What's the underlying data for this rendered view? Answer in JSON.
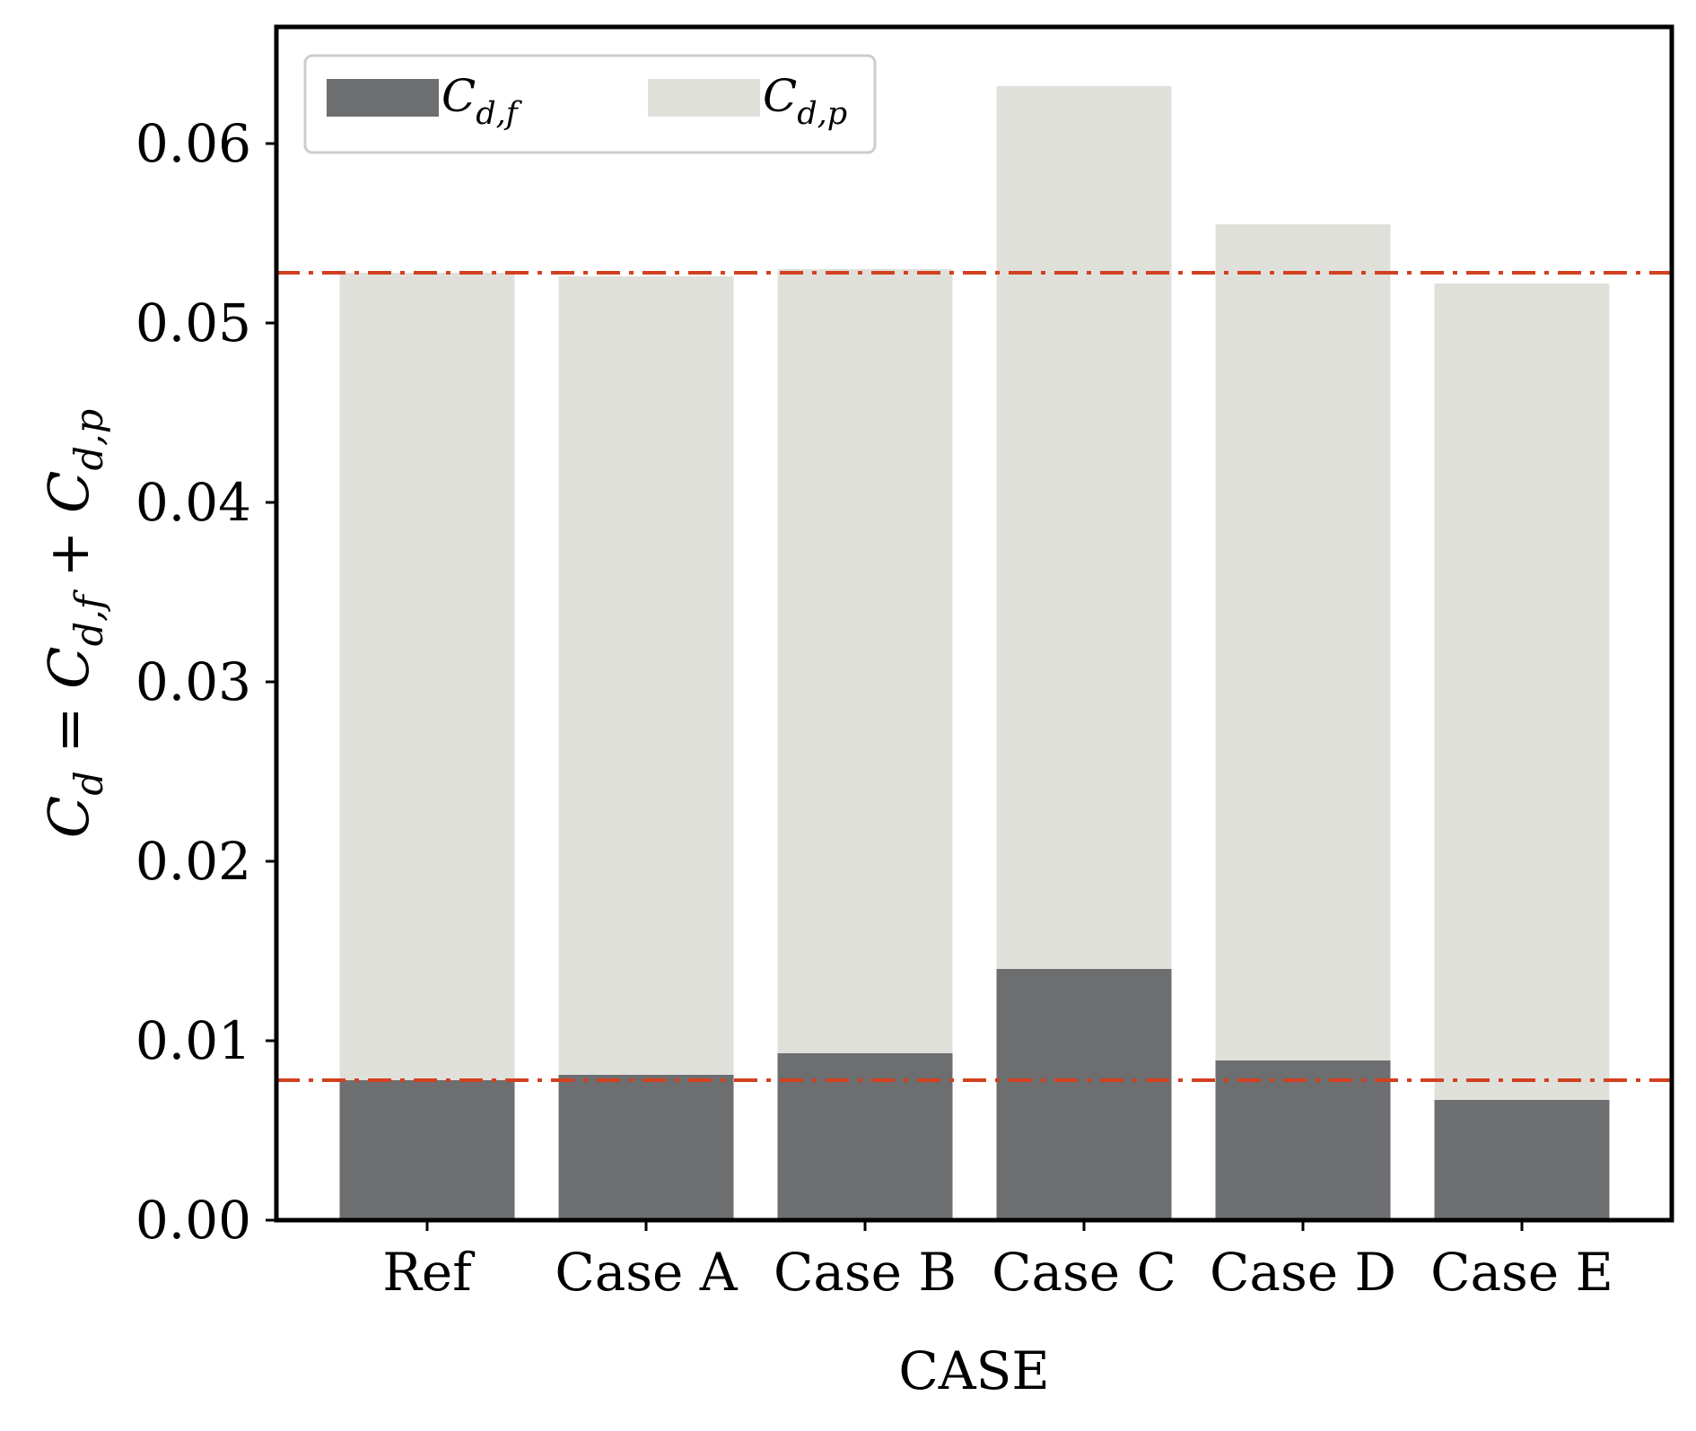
{
  "chart_data": {
    "type": "bar",
    "stacked": true,
    "categories": [
      "Ref",
      "Case A",
      "Case B",
      "Case C",
      "Case D",
      "Case E"
    ],
    "series": [
      {
        "name": "C_{d,f}",
        "name_main": "C",
        "name_sub": "d,f",
        "color": "#6d6e70",
        "values": [
          0.0078,
          0.0081,
          0.0093,
          0.014,
          0.0089,
          0.0067
        ]
      },
      {
        "name": "C_{d,p}",
        "name_main": "C",
        "name_sub": "d,p",
        "color": "#e0e0db",
        "values": [
          0.045,
          0.0445,
          0.0437,
          0.0492,
          0.0466,
          0.0455
        ]
      }
    ],
    "reference_lines": [
      {
        "y": 0.0528,
        "color": "#d2401f",
        "style": "dash-dot"
      },
      {
        "y": 0.0078,
        "color": "#d2401f",
        "style": "dash-dot"
      }
    ],
    "xlabel": "CASE",
    "ylabel": "C_d = C_{d,f} + C_{d,p}",
    "ylabel_parts": {
      "lhs": "C",
      "lhs_sub": "d",
      "eq": "=",
      "t1": "C",
      "t1_sub": "d,f",
      "plus": "+",
      "t2": "C",
      "t2_sub": "d,p"
    },
    "ylim": [
      0,
      0.0665
    ],
    "yticks": [
      {
        "value": 0.0,
        "label": "0.00"
      },
      {
        "value": 0.01,
        "label": "0.01"
      },
      {
        "value": 0.02,
        "label": "0.02"
      },
      {
        "value": 0.03,
        "label": "0.03"
      },
      {
        "value": 0.04,
        "label": "0.04"
      },
      {
        "value": 0.05,
        "label": "0.05"
      },
      {
        "value": 0.06,
        "label": "0.06"
      }
    ],
    "grid": false,
    "legend": {
      "position": "top-left",
      "columns": 2
    }
  }
}
